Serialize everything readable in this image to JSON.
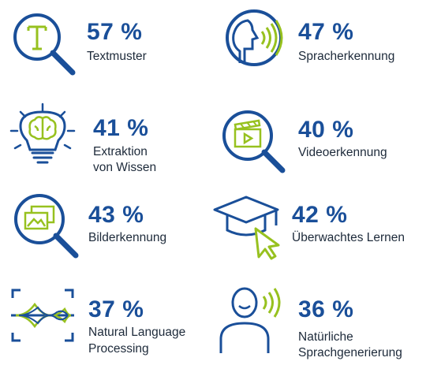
{
  "colors": {
    "blue": "#1a4f99",
    "green": "#97c11f",
    "text": "#1d2a3a"
  },
  "items": [
    {
      "icon": "text-magnifier-icon",
      "percent": "57 %",
      "label": "Textmuster"
    },
    {
      "icon": "speaking-head-icon",
      "percent": "47 %",
      "label": "Spracherkennung"
    },
    {
      "icon": "brain-lightbulb-icon",
      "percent": "41 %",
      "label_line1": "Extraktion",
      "label_line2": "von Wissen"
    },
    {
      "icon": "video-magnifier-icon",
      "percent": "40 %",
      "label": "Videoerkennung"
    },
    {
      "icon": "image-magnifier-icon",
      "percent": "43 %",
      "label": "Bilderkennung"
    },
    {
      "icon": "graduation-cap-cursor-icon",
      "percent": "42 %",
      "label": "Überwachtes Lernen"
    },
    {
      "icon": "waveform-frame-icon",
      "percent": "37 %",
      "label_line1": "Natural Language",
      "label_line2": "Processing"
    },
    {
      "icon": "person-speaking-icon",
      "percent": "36 %",
      "label_line1": "Natürliche",
      "label_line2": "Sprachgenerierung"
    }
  ]
}
